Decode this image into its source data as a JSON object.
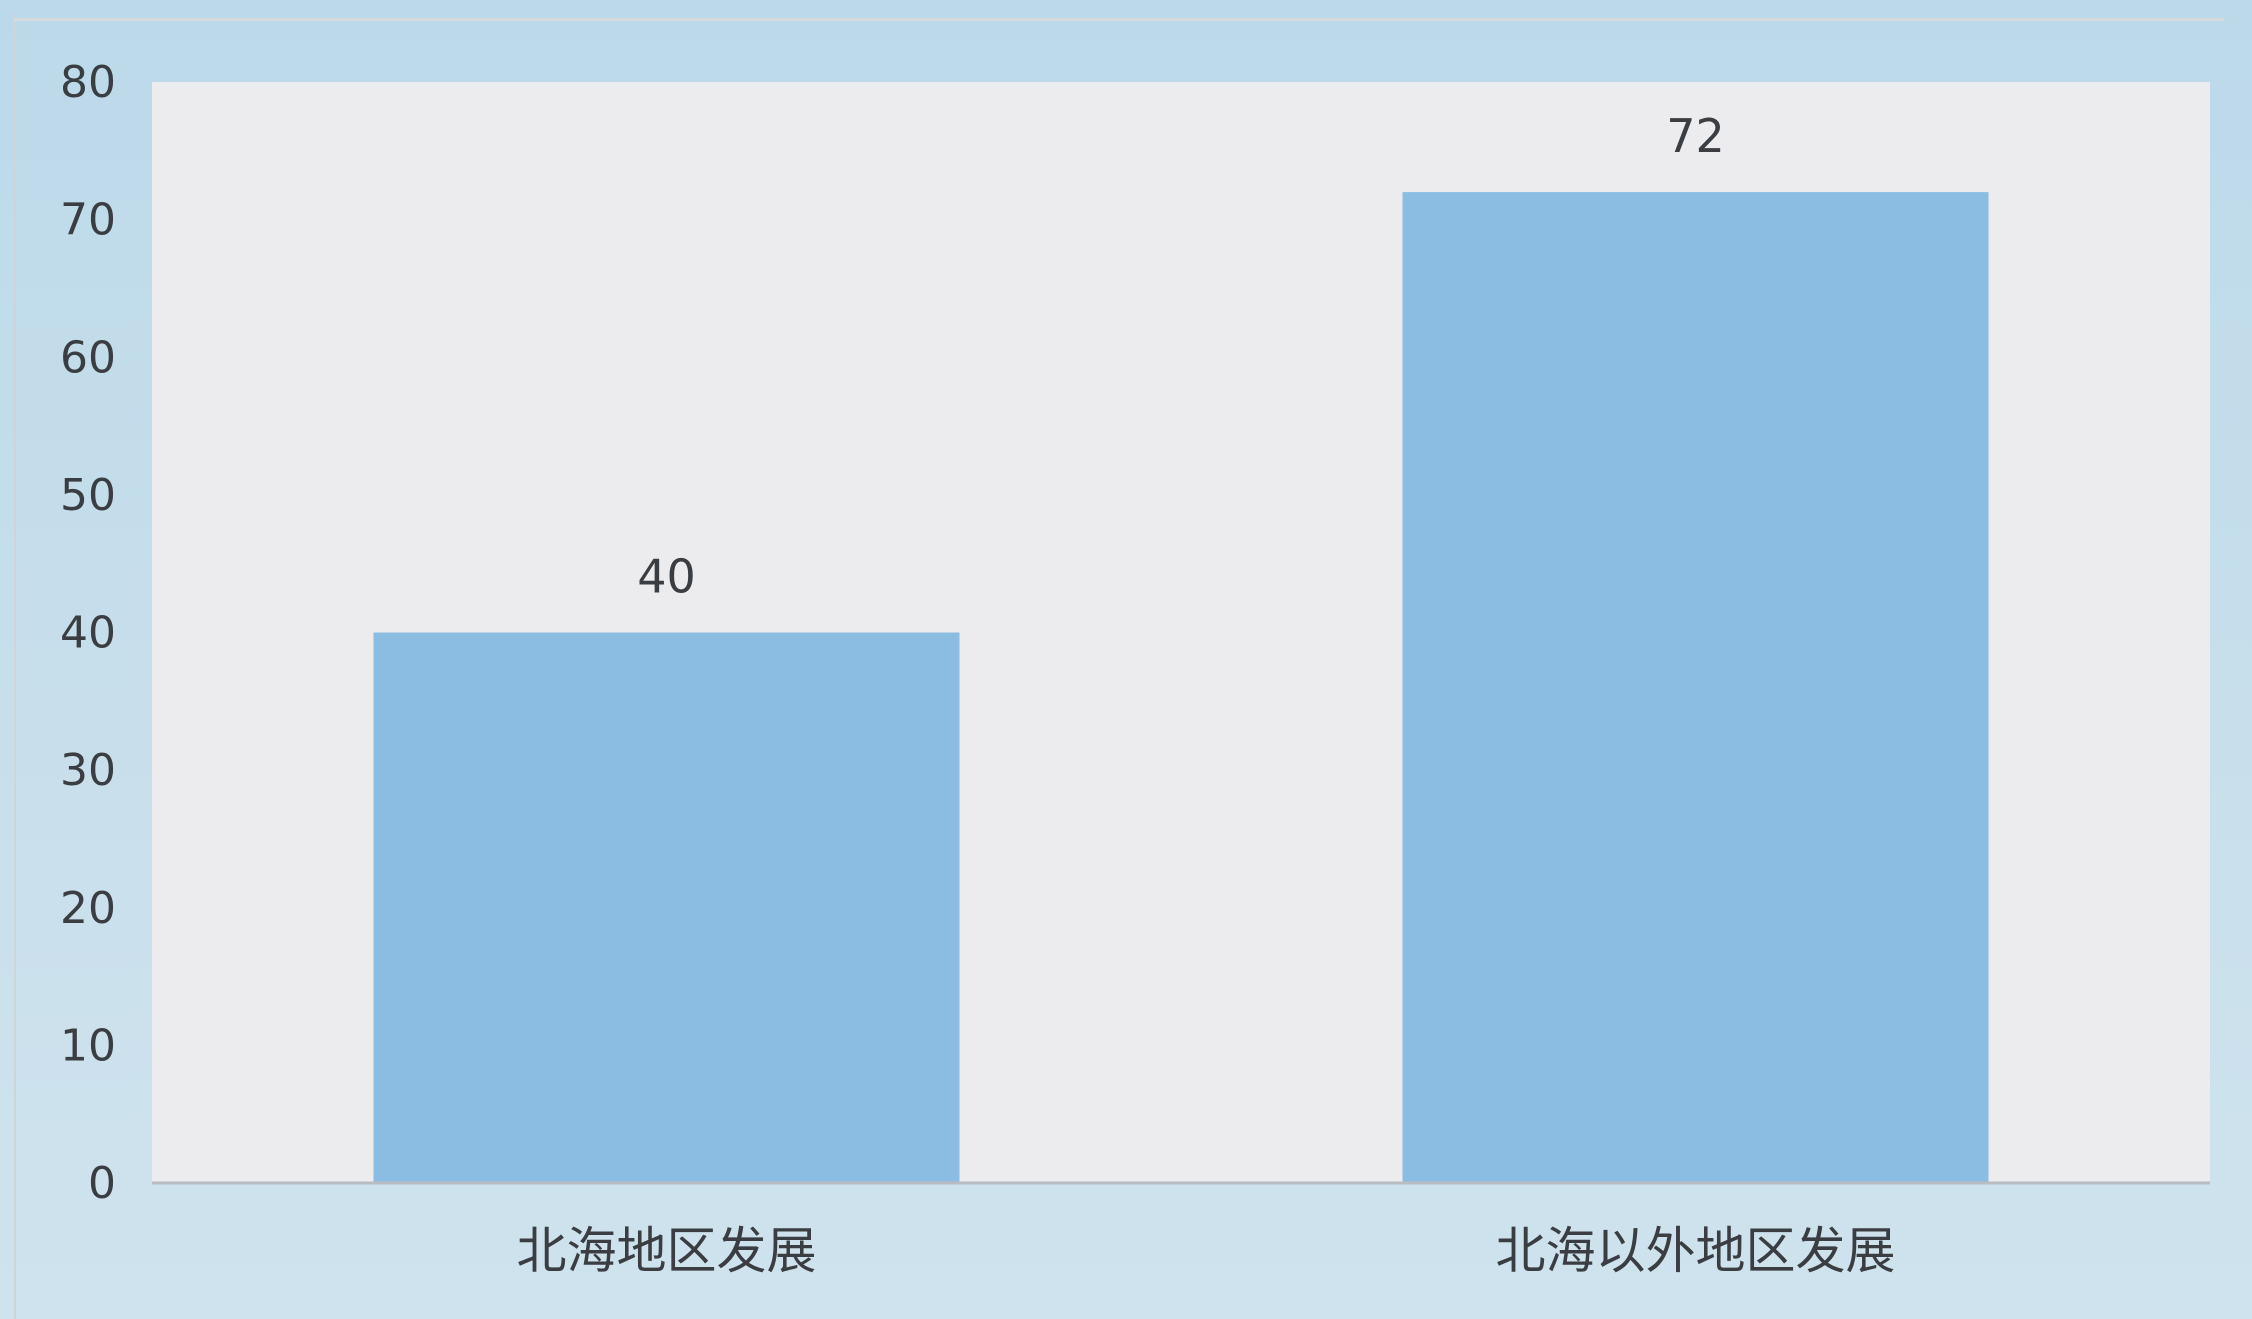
{
  "chart_data": {
    "type": "bar",
    "categories": [
      "北海地区发展",
      "北海以外地区发展"
    ],
    "values": [
      40,
      72
    ],
    "data_labels": [
      "40",
      "72"
    ],
    "y_ticks": [
      "0",
      "10",
      "20",
      "30",
      "40",
      "50",
      "60",
      "70",
      "80"
    ],
    "ylim": [
      0,
      80
    ],
    "grid": false,
    "legend": "none",
    "title": "",
    "xlabel": "",
    "ylabel": "",
    "colors": {
      "bar": "#8bbde3",
      "plot_background": "#ececee",
      "outer_background": "#c4dceb",
      "axis": "#b9bdc1"
    }
  }
}
